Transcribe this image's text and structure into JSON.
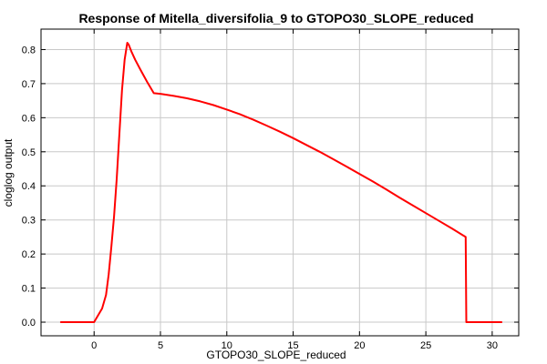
{
  "chart_data": {
    "type": "line",
    "title": "Response of Mitella_diversifolia_9 to GTOPO30_SLOPE_reduced",
    "xlabel": "GTOPO30_SLOPE_reduced",
    "ylabel": "cloglog output",
    "xlim": [
      -4,
      32
    ],
    "ylim": [
      -0.04,
      0.86
    ],
    "xticks": [
      0,
      5,
      10,
      15,
      20,
      25,
      30
    ],
    "yticks": [
      0.0,
      0.1,
      0.2,
      0.3,
      0.4,
      0.5,
      0.6,
      0.7,
      0.8
    ],
    "xtick_labels": [
      "0",
      "5",
      "10",
      "15",
      "20",
      "25",
      "30"
    ],
    "ytick_labels": [
      "0.0",
      "0.1",
      "0.2",
      "0.3",
      "0.4",
      "0.5",
      "0.6",
      "0.7",
      "0.8"
    ],
    "grid": true,
    "series": [
      {
        "color": "#ff0000",
        "x": [
          -2.5,
          0.0,
          0.3,
          0.6,
          0.9,
          1.1,
          1.3,
          1.5,
          1.7,
          1.9,
          2.1,
          2.3,
          2.5,
          2.6,
          2.8,
          3.1,
          3.5,
          4.0,
          4.5,
          5.0,
          6.0,
          7.0,
          8.0,
          9.0,
          10.0,
          11.0,
          12.0,
          13.0,
          14.0,
          15.0,
          16.0,
          17.0,
          18.0,
          19.0,
          20.0,
          21.0,
          22.0,
          23.0,
          24.0,
          25.0,
          26.0,
          27.0,
          28.0,
          28.05,
          29.0,
          30.0,
          30.7
        ],
        "y": [
          0.0,
          0.0,
          0.02,
          0.04,
          0.08,
          0.14,
          0.22,
          0.31,
          0.42,
          0.55,
          0.68,
          0.77,
          0.82,
          0.815,
          0.795,
          0.77,
          0.74,
          0.705,
          0.672,
          0.67,
          0.664,
          0.657,
          0.648,
          0.637,
          0.624,
          0.61,
          0.594,
          0.577,
          0.559,
          0.54,
          0.52,
          0.5,
          0.479,
          0.457,
          0.435,
          0.413,
          0.39,
          0.366,
          0.343,
          0.32,
          0.297,
          0.274,
          0.25,
          0.0,
          0.0,
          0.0,
          0.0
        ]
      }
    ]
  }
}
